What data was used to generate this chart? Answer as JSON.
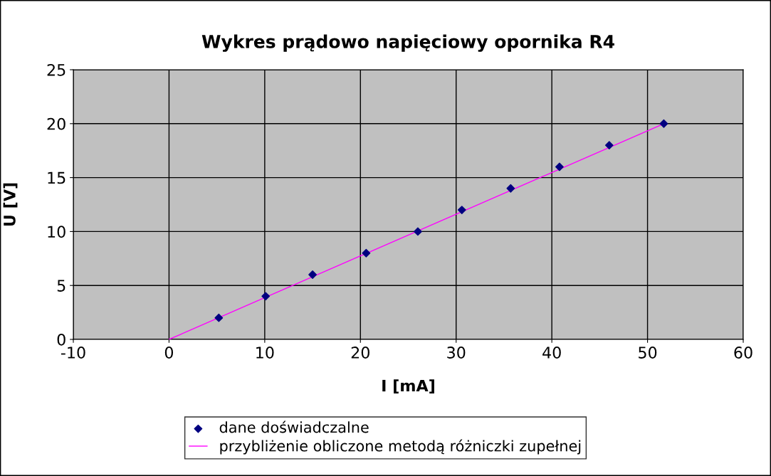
{
  "chart_data": {
    "type": "scatter",
    "title": "Wykres prądowo napięciowy opornika R4",
    "xlabel": "I [mA]",
    "ylabel": "U [V]",
    "xlim": [
      -10,
      60
    ],
    "xticks": [
      -10,
      0,
      10,
      20,
      30,
      40,
      50,
      60
    ],
    "ylim": [
      0,
      25
    ],
    "yticks": [
      0,
      5,
      10,
      15,
      20,
      25
    ],
    "grid": true,
    "legend": "bottom",
    "series": [
      {
        "name": "dane doświadczalne",
        "marker": "diamond",
        "color": "#000080",
        "x": [
          5.2,
          10.1,
          15.0,
          20.6,
          26.0,
          30.6,
          35.7,
          40.8,
          46.0,
          51.7
        ],
        "values": [
          2,
          4,
          6,
          8,
          10,
          12,
          14,
          16,
          18,
          20
        ]
      },
      {
        "name": "przybliżenie obliczone metodą różniczki zupełnej",
        "type": "line",
        "color": "#ff00ff",
        "x": [
          0,
          51.7
        ],
        "values": [
          0,
          20
        ]
      }
    ]
  }
}
